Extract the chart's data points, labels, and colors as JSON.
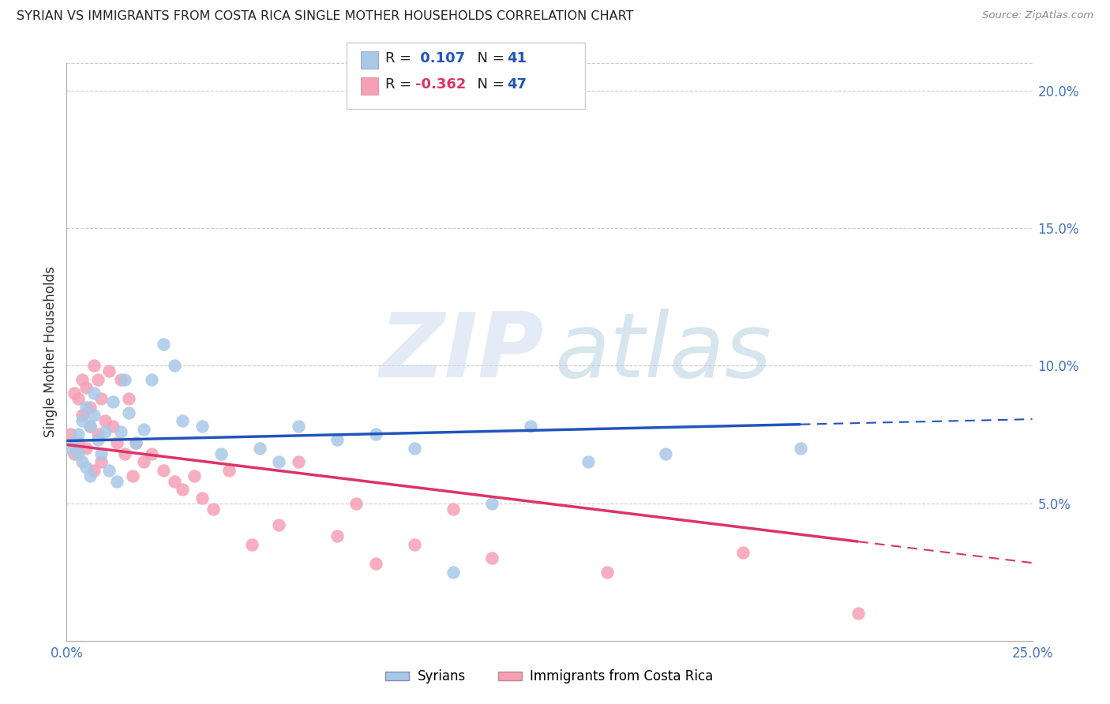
{
  "title": "SYRIAN VS IMMIGRANTS FROM COSTA RICA SINGLE MOTHER HOUSEHOLDS CORRELATION CHART",
  "source": "Source: ZipAtlas.com",
  "ylabel": "Single Mother Households",
  "xlim": [
    0.0,
    0.25
  ],
  "ylim": [
    0.0,
    0.21
  ],
  "blue_R": 0.107,
  "blue_N": 41,
  "pink_R": -0.362,
  "pink_N": 47,
  "blue_scatter_color": "#a8c8e8",
  "pink_scatter_color": "#f5a0b5",
  "blue_line_color": "#2255bb",
  "pink_line_color": "#dd3366",
  "blue_label": "Syrians",
  "pink_label": "Immigrants from Costa Rica",
  "syrians_x": [
    0.001,
    0.002,
    0.003,
    0.003,
    0.004,
    0.004,
    0.005,
    0.005,
    0.006,
    0.006,
    0.007,
    0.007,
    0.008,
    0.009,
    0.01,
    0.011,
    0.012,
    0.013,
    0.014,
    0.015,
    0.016,
    0.018,
    0.02,
    0.022,
    0.025,
    0.028,
    0.03,
    0.035,
    0.04,
    0.05,
    0.055,
    0.06,
    0.07,
    0.08,
    0.09,
    0.1,
    0.11,
    0.12,
    0.135,
    0.155,
    0.19
  ],
  "syrians_y": [
    0.07,
    0.072,
    0.068,
    0.075,
    0.065,
    0.08,
    0.063,
    0.085,
    0.06,
    0.078,
    0.082,
    0.09,
    0.073,
    0.068,
    0.076,
    0.062,
    0.087,
    0.058,
    0.076,
    0.095,
    0.083,
    0.072,
    0.077,
    0.095,
    0.108,
    0.1,
    0.08,
    0.078,
    0.068,
    0.07,
    0.065,
    0.078,
    0.073,
    0.075,
    0.07,
    0.025,
    0.05,
    0.078,
    0.065,
    0.068,
    0.07
  ],
  "costarica_x": [
    0.001,
    0.002,
    0.002,
    0.003,
    0.003,
    0.004,
    0.004,
    0.005,
    0.005,
    0.006,
    0.006,
    0.007,
    0.007,
    0.008,
    0.008,
    0.009,
    0.009,
    0.01,
    0.011,
    0.012,
    0.013,
    0.014,
    0.015,
    0.016,
    0.017,
    0.018,
    0.02,
    0.022,
    0.025,
    0.028,
    0.03,
    0.033,
    0.035,
    0.038,
    0.042,
    0.048,
    0.055,
    0.06,
    0.07,
    0.075,
    0.08,
    0.09,
    0.1,
    0.11,
    0.14,
    0.175,
    0.205
  ],
  "costarica_y": [
    0.075,
    0.09,
    0.068,
    0.088,
    0.072,
    0.095,
    0.082,
    0.07,
    0.092,
    0.085,
    0.078,
    0.1,
    0.062,
    0.095,
    0.075,
    0.088,
    0.065,
    0.08,
    0.098,
    0.078,
    0.072,
    0.095,
    0.068,
    0.088,
    0.06,
    0.072,
    0.065,
    0.068,
    0.062,
    0.058,
    0.055,
    0.06,
    0.052,
    0.048,
    0.062,
    0.035,
    0.042,
    0.065,
    0.038,
    0.05,
    0.028,
    0.035,
    0.048,
    0.03,
    0.025,
    0.032,
    0.01
  ]
}
